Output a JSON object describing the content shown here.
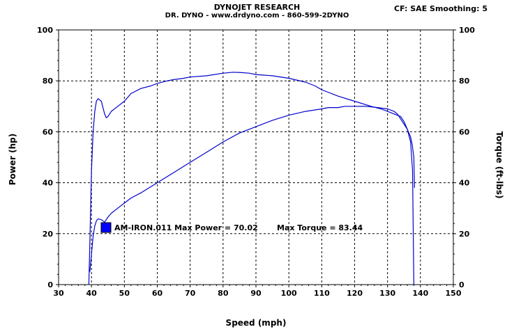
{
  "header": {
    "title": "DYNOJET RESEARCH",
    "subtitle": "DR. DYNO - www.drdyno.com - 860-599-2DYNO",
    "settings": "CF: SAE  Smoothing: 5"
  },
  "chart_data": {
    "type": "line",
    "xlabel": "Speed (mph)",
    "ylabel_left": "Power (hp)",
    "ylabel_right": "Torque (ft-lbs)",
    "xlim": [
      30,
      150
    ],
    "ylim": [
      0,
      100
    ],
    "x_ticks": [
      "30",
      "40",
      "50",
      "60",
      "70",
      "80",
      "90",
      "100",
      "110",
      "120",
      "130",
      "140",
      "150"
    ],
    "y_ticks": [
      "0",
      "20",
      "40",
      "60",
      "80",
      "100"
    ],
    "grid": true,
    "legend": {
      "label": "AM-IRON.011 Max Power = 70.02",
      "extra": "Max Torque = 83.44",
      "color": "#0000ff"
    },
    "series": [
      {
        "name": "Torque",
        "color": "#0000cc",
        "x": [
          39.2,
          39.6,
          40.0,
          40.5,
          41.0,
          41.5,
          42.0,
          43.0,
          44.0,
          44.5,
          45.0,
          46.0,
          48.0,
          50.0,
          52.0,
          55.0,
          58.0,
          60.0,
          63.0,
          65.0,
          68.0,
          70.0,
          75.0,
          80.0,
          83.0,
          85.0,
          88.0,
          90.0,
          95.0,
          100.0,
          105.0,
          108.0,
          110.0,
          115.0,
          120.0,
          125.0,
          128.0,
          130.0,
          132.0,
          134.0,
          135.0,
          136.0,
          137.0,
          137.5,
          138.0,
          138.2
        ],
        "values": [
          0,
          22,
          45,
          60,
          68,
          72,
          73,
          72,
          67,
          65.5,
          66,
          68,
          70,
          72,
          75,
          77,
          78,
          79,
          80,
          80.5,
          81,
          81.5,
          82,
          83,
          83.4,
          83.3,
          83,
          82.5,
          82,
          81,
          79.5,
          78,
          76.5,
          74,
          72,
          70,
          69,
          68,
          67,
          66,
          64,
          61,
          58,
          55,
          50,
          38
        ]
      },
      {
        "name": "Power",
        "color": "#0000cc",
        "x": [
          39.5,
          40.0,
          40.5,
          41.0,
          41.5,
          42.0,
          43.0,
          44.0,
          45.0,
          46.0,
          48.0,
          50.0,
          52.0,
          55.0,
          60.0,
          65.0,
          70.0,
          75.0,
          80.0,
          85.0,
          90.0,
          95.0,
          100.0,
          105.0,
          110.0,
          112.0,
          115.0,
          117.0,
          120.0,
          123.0,
          125.0,
          127.0,
          130.0,
          132.0,
          133.0,
          134.0,
          135.0,
          136.0,
          137.0,
          137.6,
          138.0
        ],
        "values": [
          5,
          12,
          19,
          23,
          25,
          25.8,
          25.5,
          24.5,
          26.5,
          28,
          30,
          32,
          34,
          36,
          40,
          44,
          48,
          52,
          56,
          59.5,
          62,
          64.5,
          66.5,
          68,
          69,
          69.5,
          69.5,
          70,
          70,
          70.02,
          69.8,
          69.5,
          69,
          68,
          67,
          65,
          63,
          61,
          56,
          45,
          0
        ]
      }
    ]
  }
}
